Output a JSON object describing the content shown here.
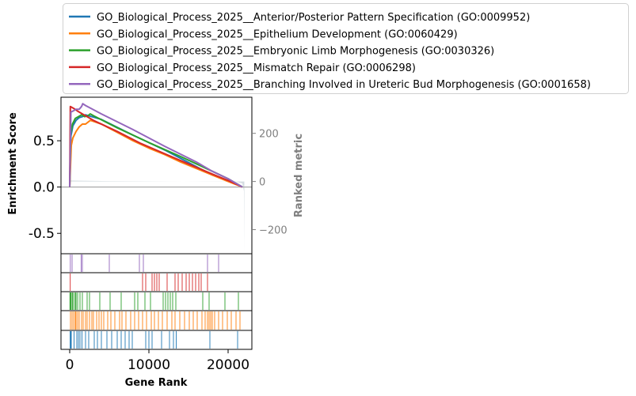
{
  "chart_data": {
    "type": "line",
    "xlabel": "Gene Rank",
    "ylabel": "Enrichment Score",
    "y2label": "Ranked metric",
    "xlim": [
      -1100,
      23000
    ],
    "ylim": [
      -0.72,
      0.97
    ],
    "y2lim": [
      -300,
      350
    ],
    "xticks": [
      0,
      10000,
      20000
    ],
    "xtick_labels": [
      "0",
      "10000",
      "20000"
    ],
    "yticks": [
      -0.5,
      0.0,
      0.5
    ],
    "ytick_labels": [
      "-0.5",
      "0.0",
      "0.5"
    ],
    "y2ticks": [
      -200,
      0,
      200
    ],
    "y2tick_labels": [
      "−200",
      "0",
      "200"
    ],
    "legend_position": "top",
    "series": [
      {
        "name": "GO_Biological_Process_2025__Anterior/Posterior Pattern Specification (GO:0009952)",
        "color": "#1f77b4",
        "x": [
          0,
          150,
          400,
          800,
          1200,
          1600,
          2000,
          4000,
          8000,
          12000,
          16000,
          18000,
          20000,
          21000,
          21800
        ],
        "y": [
          0.0,
          0.55,
          0.66,
          0.72,
          0.75,
          0.76,
          0.78,
          0.73,
          0.56,
          0.4,
          0.22,
          0.13,
          0.07,
          0.04,
          0.0
        ],
        "hits": [
          60,
          150,
          200,
          550,
          900,
          1100,
          1300,
          1550,
          2000,
          2400,
          3100,
          3500,
          4000,
          4700,
          5300,
          6000,
          6500,
          7000,
          7500,
          7900,
          9600,
          10000,
          10400,
          11600,
          12600,
          13100,
          13450,
          17700,
          21200
        ]
      },
      {
        "name": "GO_Biological_Process_2025__Epithelium Development (GO:0060429)",
        "color": "#ff7f0e",
        "x": [
          0,
          200,
          400,
          800,
          1200,
          1600,
          2000,
          2600,
          3000,
          4000,
          6000,
          8000,
          10000,
          12000,
          14000,
          16000,
          18000,
          20000,
          21800
        ],
        "y": [
          0.0,
          0.45,
          0.53,
          0.6,
          0.65,
          0.68,
          0.68,
          0.72,
          0.71,
          0.68,
          0.59,
          0.5,
          0.42,
          0.35,
          0.27,
          0.2,
          0.13,
          0.06,
          0.0
        ],
        "hits": [
          100,
          300,
          500,
          700,
          800,
          1000,
          1200,
          1500,
          1700,
          2000,
          2200,
          2500,
          2800,
          3000,
          3400,
          3700,
          4000,
          4300,
          4800,
          5200,
          5700,
          6300,
          6600,
          7100,
          7700,
          8200,
          8700,
          9200,
          9700,
          10300,
          10700,
          11200,
          11700,
          12300,
          12900,
          13300,
          13900,
          14500,
          15100,
          15600,
          16100,
          16700,
          17100,
          17400,
          17600,
          17800,
          18000,
          18300,
          18800,
          19300,
          19900,
          20400,
          21000,
          21500
        ]
      },
      {
        "name": "GO_Biological_Process_2025__Embryonic Limb Morphogenesis (GO:0030326)",
        "color": "#2ca02c",
        "x": [
          0,
          120,
          350,
          700,
          1100,
          1500,
          1900,
          2300,
          2600,
          3000,
          6000,
          10000,
          14000,
          18000,
          20000,
          21800
        ],
        "y": [
          0.0,
          0.58,
          0.68,
          0.74,
          0.76,
          0.78,
          0.76,
          0.77,
          0.79,
          0.77,
          0.64,
          0.48,
          0.33,
          0.17,
          0.09,
          0.0
        ],
        "hits": [
          30,
          100,
          200,
          350,
          500,
          700,
          800,
          1000,
          1300,
          1600,
          2200,
          2500,
          3800,
          5100,
          6500,
          8200,
          8600,
          9500,
          10200,
          11800,
          12100,
          12400,
          12700,
          13000,
          13400,
          16800,
          17600,
          19600,
          21300
        ]
      },
      {
        "name": "GO_Biological_Process_2025__Mismatch Repair (GO:0006298)",
        "color": "#d62728",
        "x": [
          0,
          80,
          500,
          1000,
          3000,
          6000,
          9000,
          12000,
          15000,
          18000,
          20000,
          21800
        ],
        "y": [
          0.0,
          0.87,
          0.85,
          0.82,
          0.72,
          0.6,
          0.47,
          0.36,
          0.25,
          0.14,
          0.07,
          0.0
        ],
        "hits": [
          70,
          9200,
          9600,
          10400,
          10700,
          11000,
          11300,
          12300,
          13300,
          13700,
          14200,
          14700,
          15100,
          15500,
          15900,
          16300,
          16600,
          17400
        ]
      },
      {
        "name": "GO_Biological_Process_2025__Branching Involved in Ureteric Bud Morphogenesis (GO:0001658)",
        "color": "#9467bd",
        "x": [
          0,
          150,
          400,
          800,
          1200,
          1500,
          1650,
          2000,
          4000,
          8000,
          12000,
          16000,
          18000,
          20000,
          21800
        ],
        "y": [
          0.0,
          0.81,
          0.82,
          0.84,
          0.84,
          0.87,
          0.9,
          0.88,
          0.79,
          0.62,
          0.44,
          0.27,
          0.17,
          0.09,
          0.0
        ],
        "hits": [
          80,
          300,
          1450,
          1600,
          5000,
          8800,
          9300,
          17400,
          18800
        ]
      }
    ]
  }
}
